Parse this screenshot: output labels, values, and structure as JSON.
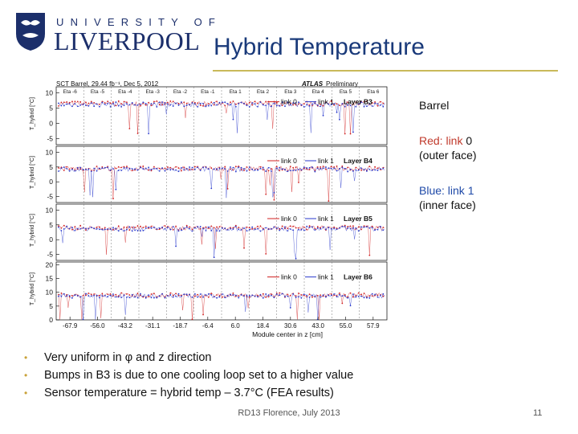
{
  "logo": {
    "university_label": "UNIVERSITY OF",
    "name": "LIVERPOOL"
  },
  "slide": {
    "title": "Hybrid Temperature",
    "footer": "RD13 Florence, July 2013",
    "page_number": "11"
  },
  "side_notes": {
    "barrel": "Barrel",
    "red_prefix": "Red: link ",
    "red_value": "0",
    "red_note": "(outer face)",
    "blue_prefix": "Blue: link ",
    "blue_value": "1",
    "blue_note": "(inner face)"
  },
  "bullets": [
    "Very uniform in φ and z direction",
    "Bumps in B3 is due to one cooling loop set to a higher value",
    "Sensor temperature = hybrid temp – 3.7°C (FEA results)"
  ],
  "colors": {
    "title": "#1a3a7a",
    "bullet": "#c9a23a",
    "link0": "#d02020",
    "link1": "#2a3acc"
  },
  "chart_data": {
    "type": "scatter",
    "header": "SCT Barrel, 29.44 fb⁻¹,   Dec 5, 2012",
    "experiment": "ATLAS",
    "experiment_label": "Preliminary",
    "eta_labels": [
      "Eta -6",
      "Eta -5",
      "Eta -4",
      "Eta -3",
      "Eta -2",
      "Eta -1",
      "Eta 1",
      "Eta 2",
      "Eta 3",
      "Eta 4",
      "Eta 5",
      "Eta 6"
    ],
    "xlabel": "Module center in z [cm]",
    "x_ticks": [
      "-67.9",
      "-56.0",
      "-43.2",
      "-31.1",
      "-18.7",
      "-6.4",
      "6.0",
      "18.4",
      "30.6",
      "43.0",
      "55.0",
      "57.9"
    ],
    "ylabel": "T_hybrid [°C]",
    "series_names": [
      "link 0",
      "link 1"
    ],
    "panels": [
      {
        "layer": "Layer B3",
        "yticks": [
          "10",
          "5",
          "0",
          "-5"
        ],
        "ylim": [
          -7,
          12
        ],
        "baseline": 6.5
      },
      {
        "layer": "Layer B4",
        "yticks": [
          "10",
          "5",
          "0",
          "-5"
        ],
        "ylim": [
          -7,
          12
        ],
        "baseline": 4.5
      },
      {
        "layer": "Layer B5",
        "yticks": [
          "10",
          "5",
          "0",
          "-5"
        ],
        "ylim": [
          -7,
          12
        ],
        "baseline": 4.0
      },
      {
        "layer": "Layer B6",
        "yticks": [
          "20",
          "15",
          "10",
          "5",
          "0"
        ],
        "ylim": [
          0,
          21
        ],
        "baseline": 9.0
      }
    ]
  }
}
